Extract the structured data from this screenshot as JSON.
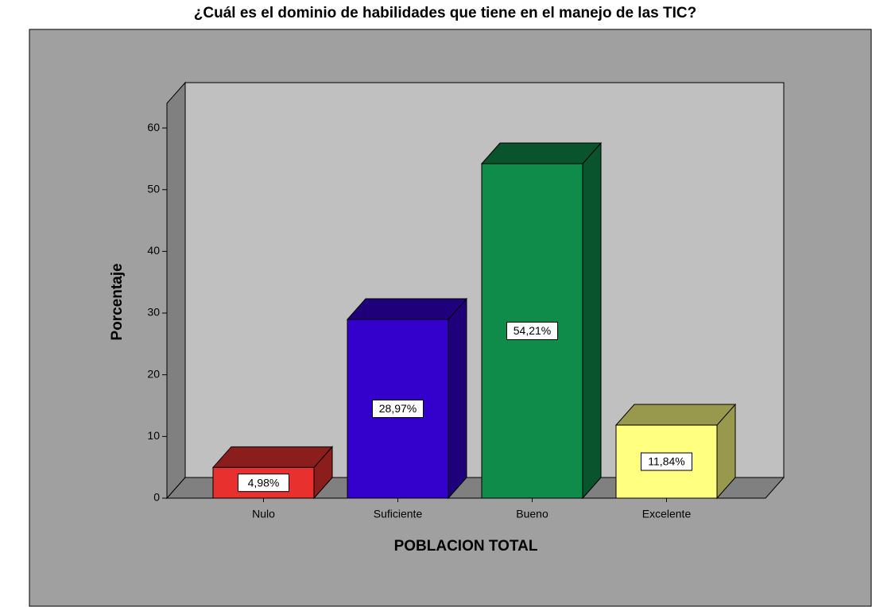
{
  "chart_data": {
    "type": "bar3d",
    "title": "¿Cuál es el dominio de habilidades que tiene en el manejo de las TIC?",
    "x_label": "POBLACION TOTAL",
    "y_label": "Porcentaje",
    "categories": [
      "Nulo",
      "Suficiente",
      "Bueno",
      "Excelente"
    ],
    "values": [
      4.98,
      28.97,
      54.21,
      11.84
    ],
    "value_labels": [
      "4,98%",
      "28,97%",
      "54,21%",
      "11,84%"
    ],
    "colors": [
      "#e8312f",
      "#3300cc",
      "#0f8c4a",
      "#ffff80"
    ],
    "ylim": [
      0,
      64
    ],
    "yticks": [
      0,
      10,
      20,
      30,
      40,
      50,
      60
    ]
  }
}
